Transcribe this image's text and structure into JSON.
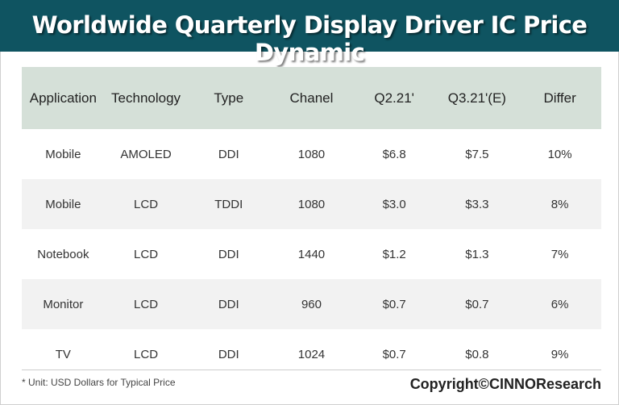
{
  "title": "Worldwide Quarterly Display Driver IC Price Dynamic",
  "chart_data": {
    "type": "table",
    "columns": [
      "Application",
      "Technology",
      "Type",
      "Chanel",
      "Q2.21'",
      "Q3.21'(E)",
      "Differ"
    ],
    "rows": [
      [
        "Mobile",
        "AMOLED",
        "DDI",
        "1080",
        "$6.8",
        "$7.5",
        "10%"
      ],
      [
        "Mobile",
        "LCD",
        "TDDI",
        "1080",
        "$3.0",
        "$3.3",
        "8%"
      ],
      [
        "Notebook",
        "LCD",
        "DDI",
        "1440",
        "$1.2",
        "$1.3",
        "7%"
      ],
      [
        "Monitor",
        "LCD",
        "DDI",
        "960",
        "$0.7",
        "$0.7",
        "6%"
      ],
      [
        "TV",
        "LCD",
        "DDI",
        "1024",
        "$0.7",
        "$0.8",
        "9%"
      ]
    ]
  },
  "footnote": "* Unit:  USD Dollars for Typical Price",
  "copyright": "Copyright©CINNOResearch",
  "colors": {
    "title_bar": "#0f5461",
    "header_row": "#d5e0d8",
    "alt_row": "#f2f2f2"
  }
}
